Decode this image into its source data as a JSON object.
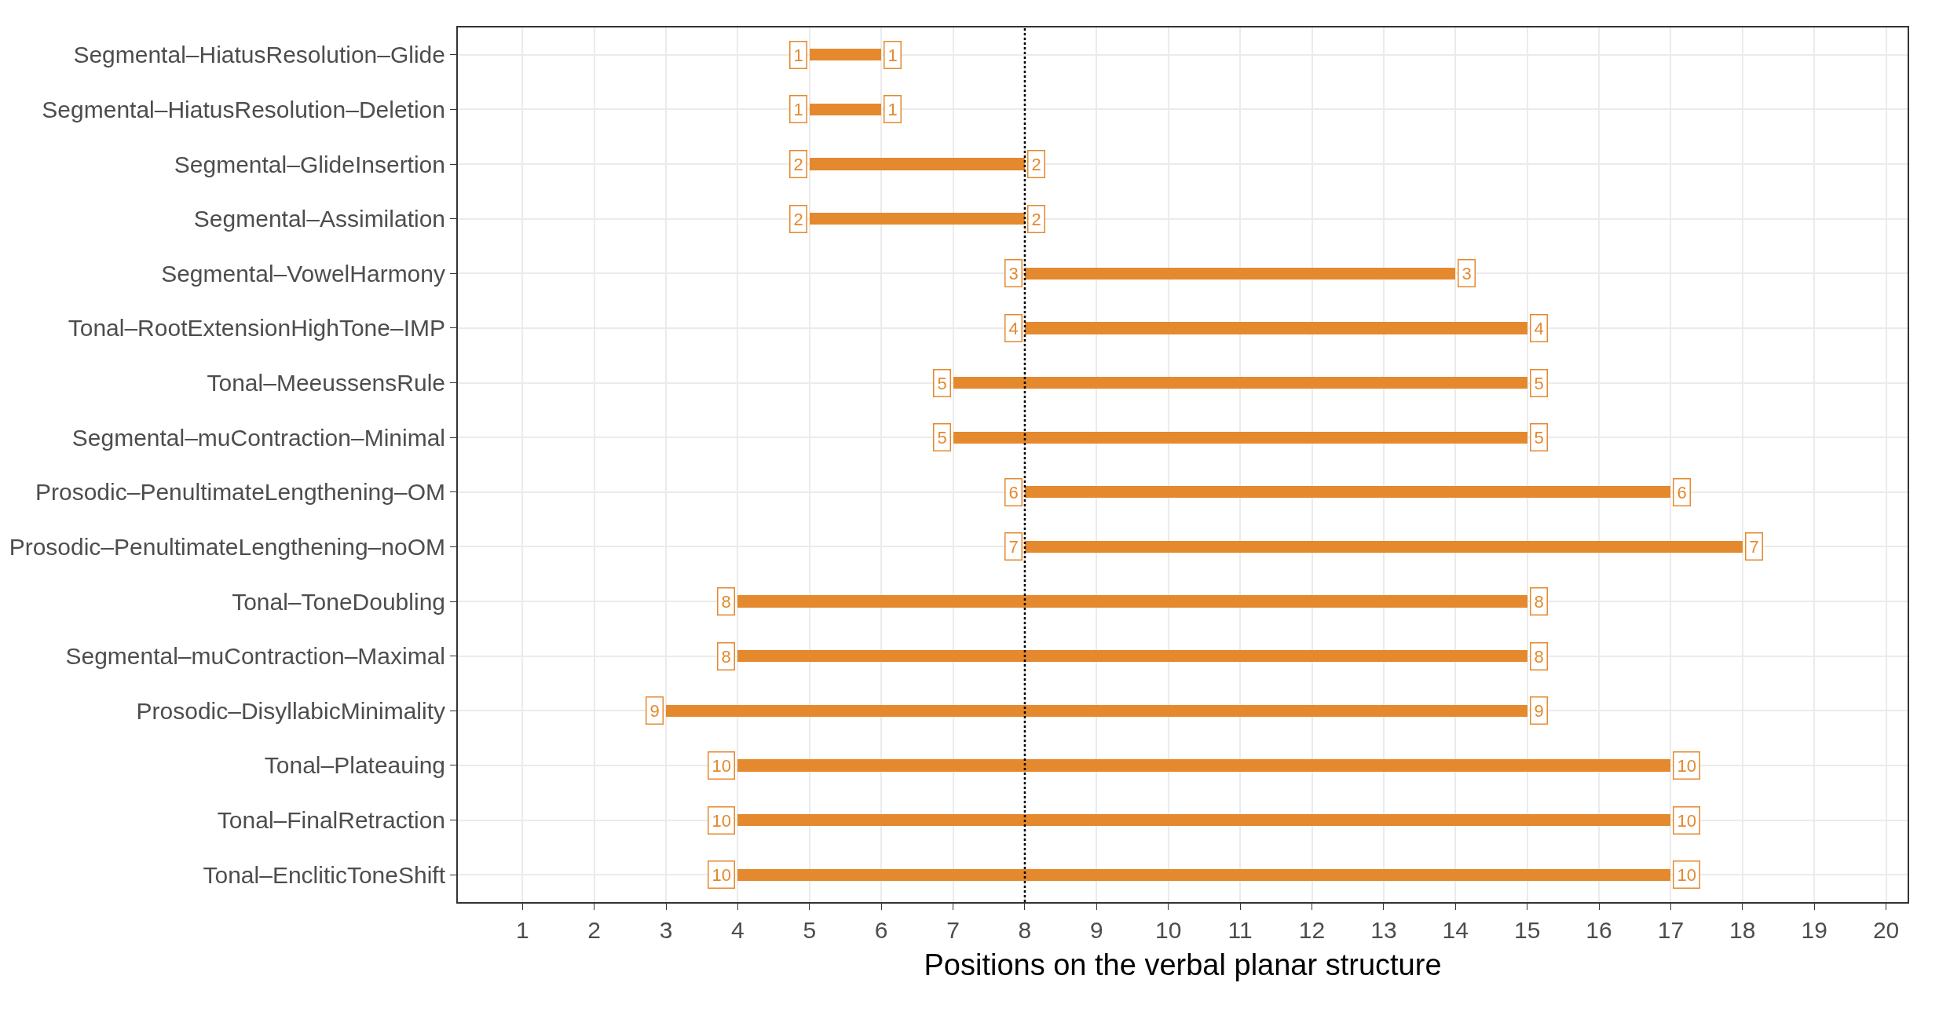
{
  "chart_data": {
    "type": "bar",
    "orientation": "horizontal",
    "xlabel": "Positions on the verbal planar structure",
    "categories": [
      "Segmental–HiatusResolution–Glide",
      "Segmental–HiatusResolution–Deletion",
      "Segmental–GlideInsertion",
      "Segmental–Assimilation",
      "Segmental–VowelHarmony",
      "Tonal–RootExtensionHighTone–IMP",
      "Tonal–MeeussensRule",
      "Segmental–muContraction–Minimal",
      "Prosodic–PenultimateLengthening–OM",
      "Prosodic–PenultimateLengthening–noOM",
      "Tonal–ToneDoubling",
      "Segmental–muContraction–Maximal",
      "Prosodic–DisyllabicMinimality",
      "Tonal–Plateauing",
      "Tonal–FinalRetraction",
      "Tonal–EncliticToneShift"
    ],
    "series": [
      {
        "color": "#e4892e",
        "base": [
          5,
          5,
          5,
          5,
          8,
          8,
          7,
          7,
          8,
          8,
          4,
          4,
          3,
          4,
          4,
          4
        ],
        "values": [
          1,
          1,
          3,
          3,
          6,
          7,
          8,
          8,
          9,
          10,
          11,
          11,
          12,
          13,
          13,
          13
        ]
      }
    ],
    "annotations": [
      {
        "text": "1",
        "x": 5,
        "y": "Segmental–HiatusResolution–Glide"
      },
      {
        "text": "1",
        "x": 6,
        "y": "Segmental–HiatusResolution–Glide"
      },
      {
        "text": "1",
        "x": 5,
        "y": "Segmental–HiatusResolution–Deletion"
      },
      {
        "text": "1",
        "x": 6,
        "y": "Segmental–HiatusResolution–Deletion"
      },
      {
        "text": "2",
        "x": 5,
        "y": "Segmental–GlideInsertion"
      },
      {
        "text": "2",
        "x": 8,
        "y": "Segmental–GlideInsertion"
      },
      {
        "text": "2",
        "x": 5,
        "y": "Segmental–Assimilation"
      },
      {
        "text": "2",
        "x": 8,
        "y": "Segmental–Assimilation"
      },
      {
        "text": "3",
        "x": 8,
        "y": "Segmental–VowelHarmony"
      },
      {
        "text": "3",
        "x": 14,
        "y": "Segmental–VowelHarmony"
      },
      {
        "text": "4",
        "x": 8,
        "y": "Tonal–RootExtensionHighTone–IMP"
      },
      {
        "text": "4",
        "x": 15,
        "y": "Tonal–RootExtensionHighTone–IMP"
      },
      {
        "text": "5",
        "x": 7,
        "y": "Tonal–MeeussensRule"
      },
      {
        "text": "5",
        "x": 15,
        "y": "Tonal–MeeussensRule"
      },
      {
        "text": "5",
        "x": 7,
        "y": "Segmental–muContraction–Minimal"
      },
      {
        "text": "5",
        "x": 15,
        "y": "Segmental–muContraction–Minimal"
      },
      {
        "text": "6",
        "x": 8,
        "y": "Prosodic–PenultimateLengthening–OM"
      },
      {
        "text": "6",
        "x": 17,
        "y": "Prosodic–PenultimateLengthening–OM"
      },
      {
        "text": "7",
        "x": 8,
        "y": "Prosodic–PenultimateLengthening–noOM"
      },
      {
        "text": "7",
        "x": 18,
        "y": "Prosodic–PenultimateLengthening–noOM"
      },
      {
        "text": "8",
        "x": 4,
        "y": "Tonal–ToneDoubling"
      },
      {
        "text": "8",
        "x": 15,
        "y": "Tonal–ToneDoubling"
      },
      {
        "text": "8",
        "x": 4,
        "y": "Segmental–muContraction–Maximal"
      },
      {
        "text": "8",
        "x": 15,
        "y": "Segmental–muContraction–Maximal"
      },
      {
        "text": "9",
        "x": 3,
        "y": "Prosodic–DisyllabicMinimality"
      },
      {
        "text": "9",
        "x": 15,
        "y": "Prosodic–DisyllabicMinimality"
      },
      {
        "text": "10",
        "x": 4,
        "y": "Tonal–Plateauing"
      },
      {
        "text": "10",
        "x": 17,
        "y": "Tonal–Plateauing"
      },
      {
        "text": "10",
        "x": 4,
        "y": "Tonal–FinalRetraction"
      },
      {
        "text": "10",
        "x": 17,
        "y": "Tonal–FinalRetraction"
      },
      {
        "text": "10",
        "x": 4,
        "y": "Tonal–EncliticToneShift"
      },
      {
        "text": "10",
        "x": 17,
        "y": "Tonal–EncliticToneShift"
      }
    ],
    "xlim": [
      0.1,
      20.3
    ],
    "xticks": [
      1,
      2,
      3,
      4,
      5,
      6,
      7,
      8,
      9,
      10,
      11,
      12,
      13,
      14,
      15,
      16,
      17,
      18,
      19,
      20
    ],
    "ref_lines": [
      {
        "axis": "x",
        "value": 8,
        "color": "#000000",
        "line_style": "dotted"
      }
    ],
    "grid": true
  }
}
